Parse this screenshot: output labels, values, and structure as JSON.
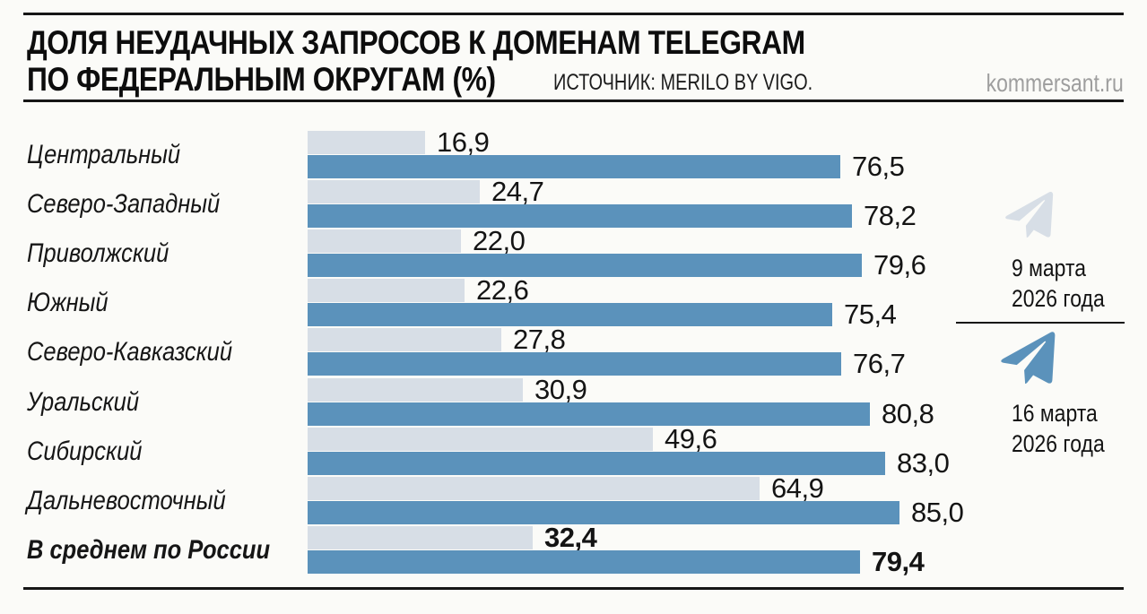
{
  "header": {
    "title_line1": "ДОЛЯ НЕУДАЧНЫХ ЗАПРОСОВ К ДОМЕНАМ TELEGRAM",
    "title_line2": "ПО ФЕДЕРАЛЬНЫМ ОКРУГАМ (%)",
    "source": "ИСТОЧНИК: MERILO BY VIGO.",
    "brand": "kommersant.ru"
  },
  "legend": {
    "period1": {
      "line1": "9 марта",
      "line2": "2026 года",
      "color": "#d7dee6",
      "icon": "telegram-plane-icon"
    },
    "period2": {
      "line1": "16 марта",
      "line2": "2026 года",
      "color": "#5b92bb",
      "icon": "telegram-plane-icon"
    }
  },
  "colors": {
    "series1": "#d7dee6",
    "series2": "#5b92bb",
    "rule": "#161616",
    "brand_gray": "#9e9e9e",
    "background": "#fbfbf8"
  },
  "chart_data": {
    "type": "bar",
    "orientation": "horizontal",
    "title": "Доля неудачных запросов к доменам Telegram по федеральным округам (%)",
    "xlabel": "",
    "ylabel": "",
    "xlim": [
      0,
      85
    ],
    "grid": false,
    "legend_position": "right",
    "categories": [
      "Центральный",
      "Северо-Западный",
      "Приволжский",
      "Южный",
      "Северо-Кавказский",
      "Уральский",
      "Сибирский",
      "Дальневосточный",
      "В среднем по России"
    ],
    "series": [
      {
        "name": "9 марта 2026 года",
        "color": "#d7dee6",
        "values": [
          16.9,
          24.7,
          22.0,
          22.6,
          27.8,
          30.9,
          49.6,
          64.9,
          32.4
        ],
        "labels": [
          "16,9",
          "24,7",
          "22,0",
          "22,6",
          "27,8",
          "30,9",
          "49,6",
          "64,9",
          "32,4"
        ]
      },
      {
        "name": "16 марта 2026 года",
        "color": "#5b92bb",
        "values": [
          76.5,
          78.2,
          79.6,
          75.4,
          76.7,
          80.8,
          83.0,
          85.0,
          79.4
        ],
        "labels": [
          "76,5",
          "78,2",
          "79,6",
          "75,4",
          "76,7",
          "80,8",
          "83,0",
          "85,0",
          "79,4"
        ]
      }
    ],
    "emphasized_category": "В среднем по России"
  }
}
